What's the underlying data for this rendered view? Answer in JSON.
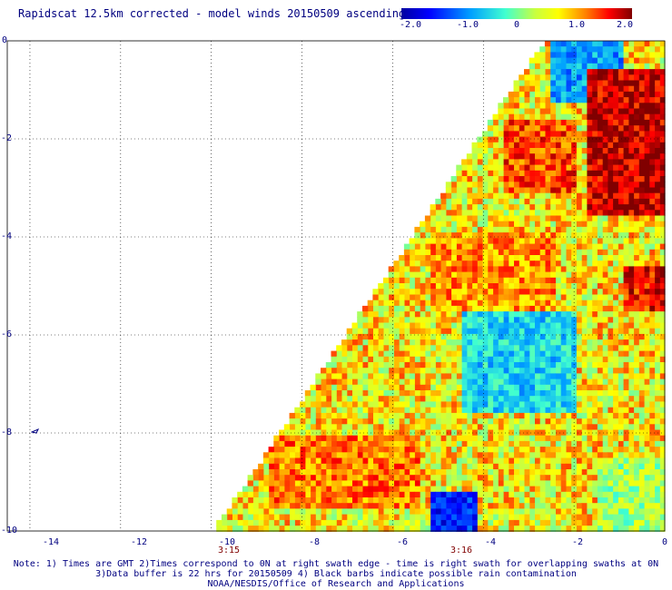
{
  "title": "Rapidscat 12.5km corrected - model winds 20150509 ascending",
  "colorbar": {
    "labels": [
      "-2.0",
      "-1.0",
      "0",
      "1.0",
      "2.0"
    ],
    "range": [
      -2.0,
      2.0
    ]
  },
  "axes": {
    "x_ticks": [
      "-14",
      "-12",
      "-10",
      "-8",
      "-6",
      "-4",
      "-2",
      "0"
    ],
    "y_ticks": [
      "0",
      "-2",
      "-4",
      "-6",
      "-8",
      "-10"
    ],
    "xlim": [
      -14.5,
      0
    ],
    "ylim": [
      -10,
      0
    ],
    "grid": true
  },
  "times": [
    {
      "label": "3:15",
      "lon": -10
    },
    {
      "label": "3:16",
      "lon": -4.5
    }
  ],
  "notes": [
    "Note: 1) Times are GMT 2)Times correspond to 0N at right swath edge - time is right swath for overlapping swaths at 0N",
    "3)Data buffer is 22 hrs for 20150509 4) Black barbs indicate possible rain contamination",
    "NOAA/NESDIS/Office of Research and Applications"
  ],
  "chart_data": {
    "type": "heatmap",
    "title": "Rapidscat 12.5km corrected - model winds 20150509 ascending",
    "x_range": [
      -14.5,
      0
    ],
    "y_range": [
      -10,
      0
    ],
    "color_range": [
      -2.0,
      2.0
    ],
    "swath_left_edge": [
      {
        "lat": 0,
        "lon": -2.6
      },
      {
        "lat": -10,
        "lon": -9.9
      }
    ],
    "regions": [
      {
        "lat_from": 0,
        "lat_to": -1.2,
        "lon_from": -2.6,
        "lon_to": -1.0,
        "value": -0.8
      },
      {
        "lat_from": -0.5,
        "lat_to": -3.5,
        "lon_from": -1.8,
        "lon_to": 0,
        "value": 1.8
      },
      {
        "lat_from": -1.5,
        "lat_to": -3.0,
        "lon_from": -3.6,
        "lon_to": -2.0,
        "value": 1.4
      },
      {
        "lat_from": -3.8,
        "lat_to": -5.5,
        "lon_from": -5.2,
        "lon_to": -2.5,
        "value": 1.1
      },
      {
        "lat_from": -4.5,
        "lat_to": -5.5,
        "lon_from": -1.0,
        "lon_to": 0,
        "value": 1.6
      },
      {
        "lat_from": -5.5,
        "lat_to": -7.5,
        "lon_from": -4.5,
        "lon_to": -2.0,
        "value": -0.5
      },
      {
        "lat_from": -8.0,
        "lat_to": -9.5,
        "lon_from": -8.8,
        "lon_to": -5.5,
        "value": 1.2
      },
      {
        "lat_from": -9.2,
        "lat_to": -10,
        "lon_from": -5.2,
        "lon_to": -4.2,
        "value": -1.4
      },
      {
        "lat_from": -8.5,
        "lat_to": -10,
        "lon_from": -1.5,
        "lon_to": 0,
        "value": 0.2
      }
    ]
  }
}
